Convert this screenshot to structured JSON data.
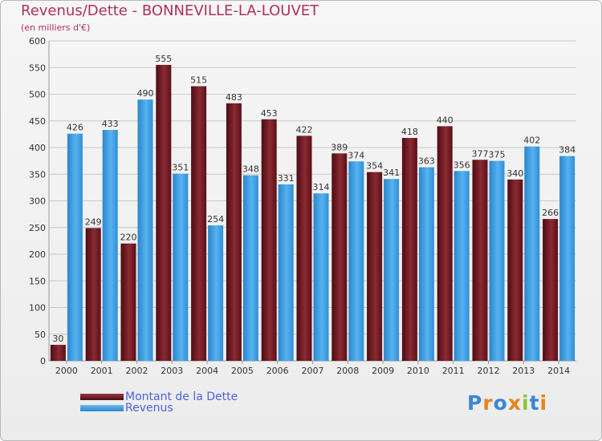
{
  "title": "Revenus/Dette - BONNEVILLE-LA-LOUVET",
  "subtitle": "(en milliers d'€)",
  "logo": {
    "letters": [
      "P",
      "r",
      "o",
      "x",
      "i",
      "t",
      "i"
    ],
    "colors": [
      "#3a86d8",
      "#e8841a",
      "#3a86d8",
      "#e8841a",
      "#8cc43c",
      "#3a86d8",
      "#e8841a"
    ]
  },
  "colors": {
    "dette": "#7a1c24",
    "revenus": "#3f9de3",
    "grid": "#c9c9c9",
    "axis_text": "#333333",
    "title": "#b0305a",
    "legend_text": "#4e63e0"
  },
  "chart_data": {
    "type": "bar",
    "title": "Revenus/Dette - BONNEVILLE-LA-LOUVET",
    "ylabel": "(en milliers d'€)",
    "ylim": [
      0,
      600
    ],
    "yticks": [
      0,
      50,
      100,
      150,
      200,
      250,
      300,
      350,
      400,
      450,
      500,
      550,
      600
    ],
    "grid": true,
    "legend_position": "bottom-left",
    "categories": [
      "2000",
      "2001",
      "2002",
      "2003",
      "2004",
      "2005",
      "2006",
      "2007",
      "2008",
      "2009",
      "2010",
      "2011",
      "2012",
      "2013",
      "2014"
    ],
    "series": [
      {
        "name": "Montant de la Dette",
        "values": [
          30,
          249,
          220,
          555,
          515,
          483,
          453,
          422,
          389,
          354,
          418,
          440,
          377,
          340,
          266
        ]
      },
      {
        "name": "Revenus",
        "values": [
          426,
          433,
          490,
          351,
          254,
          348,
          331,
          314,
          374,
          341,
          363,
          356,
          375,
          402,
          384
        ]
      }
    ]
  }
}
